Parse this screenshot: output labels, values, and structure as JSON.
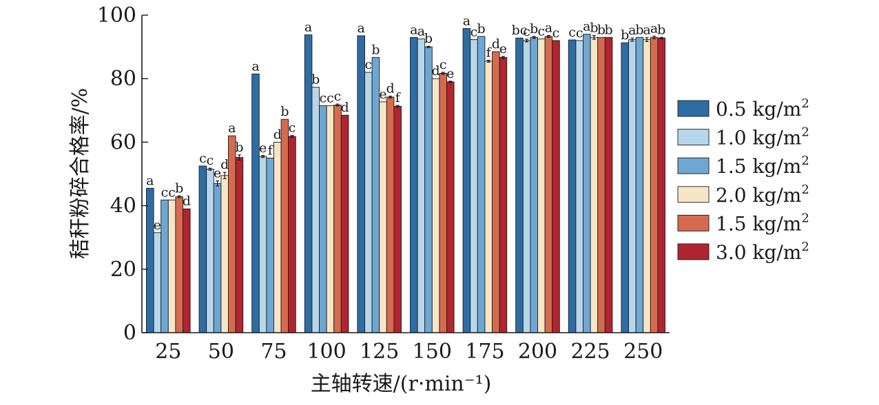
{
  "chart_data": {
    "type": "bar",
    "title": "",
    "xlabel": "主轴转速/(r·min⁻¹)",
    "ylabel": "秸秆粉碎合格率/%",
    "ylim": [
      0,
      100
    ],
    "yticks": [
      0,
      20,
      40,
      60,
      80,
      100
    ],
    "categories": [
      "25",
      "50",
      "75",
      "100",
      "125",
      "150",
      "175",
      "200",
      "225",
      "250"
    ],
    "legend_position": "right",
    "series": [
      {
        "name": "0.5 kg/m²",
        "legend_text": "0.5 kg/m",
        "legend_sup": "2",
        "color": "#2e6da4",
        "values": [
          45.5,
          52.5,
          81.5,
          93.8,
          93.5,
          93.0,
          95.8,
          92.8,
          92.2,
          91.3
        ],
        "errors": [
          0,
          0,
          0,
          0,
          0,
          0,
          0,
          0,
          0,
          0
        ],
        "letters": [
          "a",
          "c",
          "a",
          "a",
          "a",
          "a",
          "a",
          "bc",
          "c",
          "b"
        ]
      },
      {
        "name": "1.0 kg/m²",
        "legend_text": "1.0 kg/m",
        "legend_sup": "2",
        "color": "#b7d6ea",
        "values": [
          31.5,
          51.5,
          55.5,
          77.3,
          82.0,
          92.5,
          92.3,
          92.0,
          92.0,
          92.3
        ],
        "errors": [
          0,
          0.3,
          0.3,
          0,
          0,
          0,
          0,
          0.4,
          0,
          0.5
        ],
        "letters": [
          "e",
          "c",
          "e",
          "b",
          "c",
          "a",
          "c",
          "c",
          "c",
          "a"
        ]
      },
      {
        "name": "1.5 kg/m²",
        "legend_text": "1.5 kg/m",
        "legend_sup": "2",
        "color": "#6ea7d4",
        "values": [
          41.8,
          47.0,
          55.0,
          71.5,
          86.7,
          90.0,
          93.3,
          93.0,
          94.0,
          93.0
        ],
        "errors": [
          0,
          0.8,
          0,
          0,
          0,
          0.2,
          0,
          0.3,
          0,
          0
        ],
        "letters": [
          "c",
          "e",
          "f",
          "c",
          "b",
          "b",
          "b",
          "b",
          "a",
          "b"
        ]
      },
      {
        "name": "2.0 kg/m²",
        "legend_text": "2.0 kg/m",
        "legend_sup": "2",
        "color": "#f7e6c6",
        "values": [
          41.8,
          49.5,
          60.0,
          71.5,
          72.7,
          80.0,
          85.5,
          92.5,
          93.0,
          92.3
        ],
        "errors": [
          0,
          1.0,
          0,
          0,
          0,
          0,
          0.3,
          0,
          0.6,
          0.6
        ],
        "letters": [
          "c",
          "d",
          "d",
          "c",
          "e",
          "d",
          "f",
          "c",
          "b",
          "a"
        ]
      },
      {
        "name": "1.5 kg/m²",
        "legend_text": "1.5 kg/m",
        "legend_sup": "2",
        "color": "#d66a4f",
        "values": [
          42.8,
          62.0,
          67.2,
          71.7,
          74.2,
          81.7,
          88.5,
          93.3,
          93.0,
          93.0
        ],
        "errors": [
          0.3,
          0,
          0,
          0.3,
          0.3,
          0.3,
          0,
          0.3,
          0,
          0.4
        ],
        "letters": [
          "b",
          "a",
          "b",
          "c",
          "d",
          "c",
          "d",
          "a",
          "b",
          "a"
        ]
      },
      {
        "name": "3.0 kg/m²",
        "legend_text": "3.0 kg/m",
        "legend_sup": "2",
        "color": "#b0252f",
        "values": [
          39.0,
          55.2,
          61.8,
          68.5,
          71.3,
          79.0,
          86.7,
          92.0,
          93.0,
          92.8
        ],
        "errors": [
          0,
          0.8,
          0.3,
          0,
          0.3,
          0.2,
          0.3,
          0,
          0,
          0.2
        ],
        "letters": [
          "d",
          "b",
          "c",
          "d",
          "f",
          "e",
          "e",
          "c",
          "b",
          "b"
        ]
      }
    ]
  }
}
